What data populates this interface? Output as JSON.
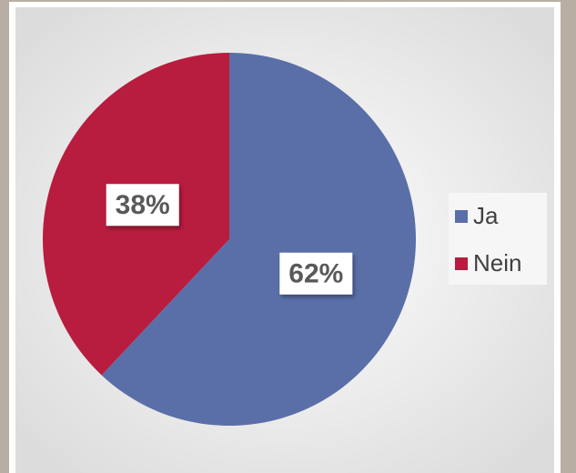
{
  "chart_data": {
    "type": "pie",
    "categories": [
      "Ja",
      "Nein"
    ],
    "values": [
      62,
      38
    ],
    "value_labels": [
      "62%",
      "38%"
    ],
    "colors": [
      "#5a6fa8",
      "#b81c3e"
    ],
    "legend": "right"
  }
}
